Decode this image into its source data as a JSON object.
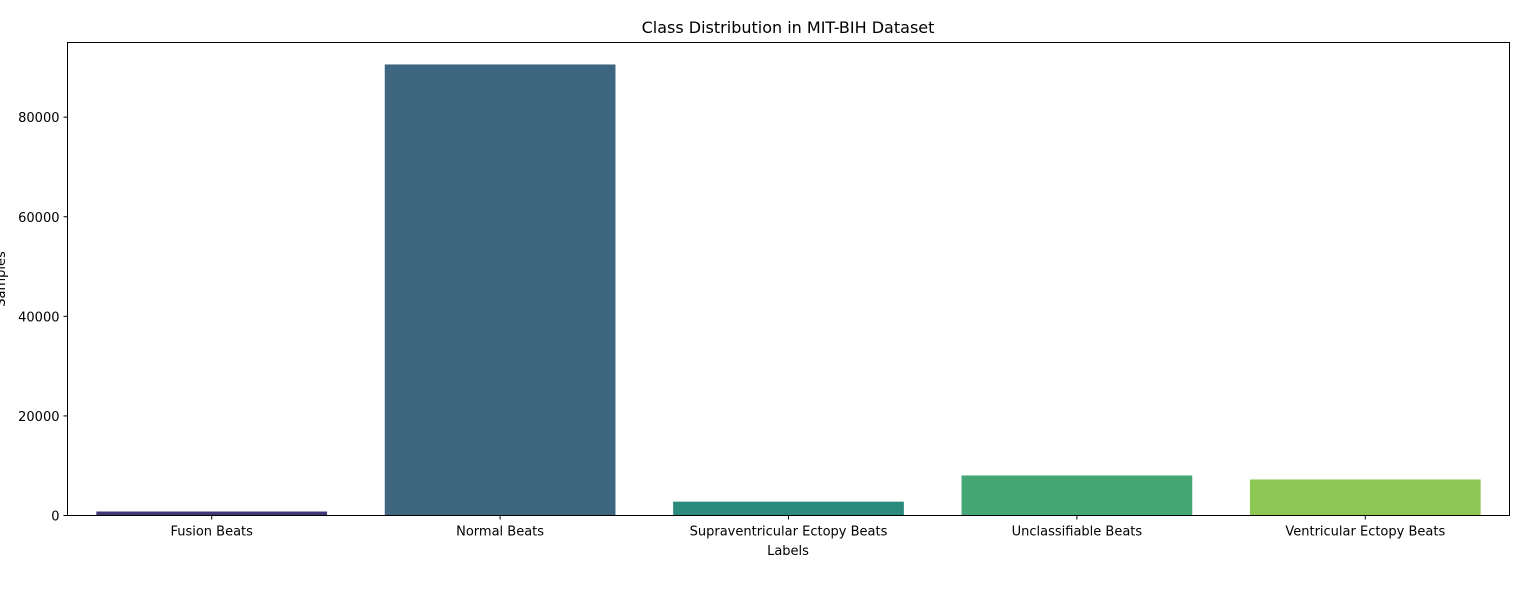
{
  "chart_data": {
    "type": "bar",
    "title": "Class Distribution in MIT-BIH Dataset",
    "xlabel": "Labels",
    "ylabel": "Samples",
    "categories": [
      "Fusion Beats",
      "Normal Beats",
      "Supraventricular Ectopy Beats",
      "Unclassifiable Beats",
      "Ventricular Ectopy Beats"
    ],
    "values": [
      802,
      90589,
      2779,
      8039,
      7236
    ],
    "colors": [
      "#3f3a77",
      "#3e6680",
      "#2a8a7c",
      "#45a776",
      "#8cc653"
    ],
    "ylim": [
      0,
      95000
    ],
    "yticks": [
      0,
      20000,
      40000,
      60000,
      80000
    ],
    "grid": false,
    "legend": "none"
  }
}
